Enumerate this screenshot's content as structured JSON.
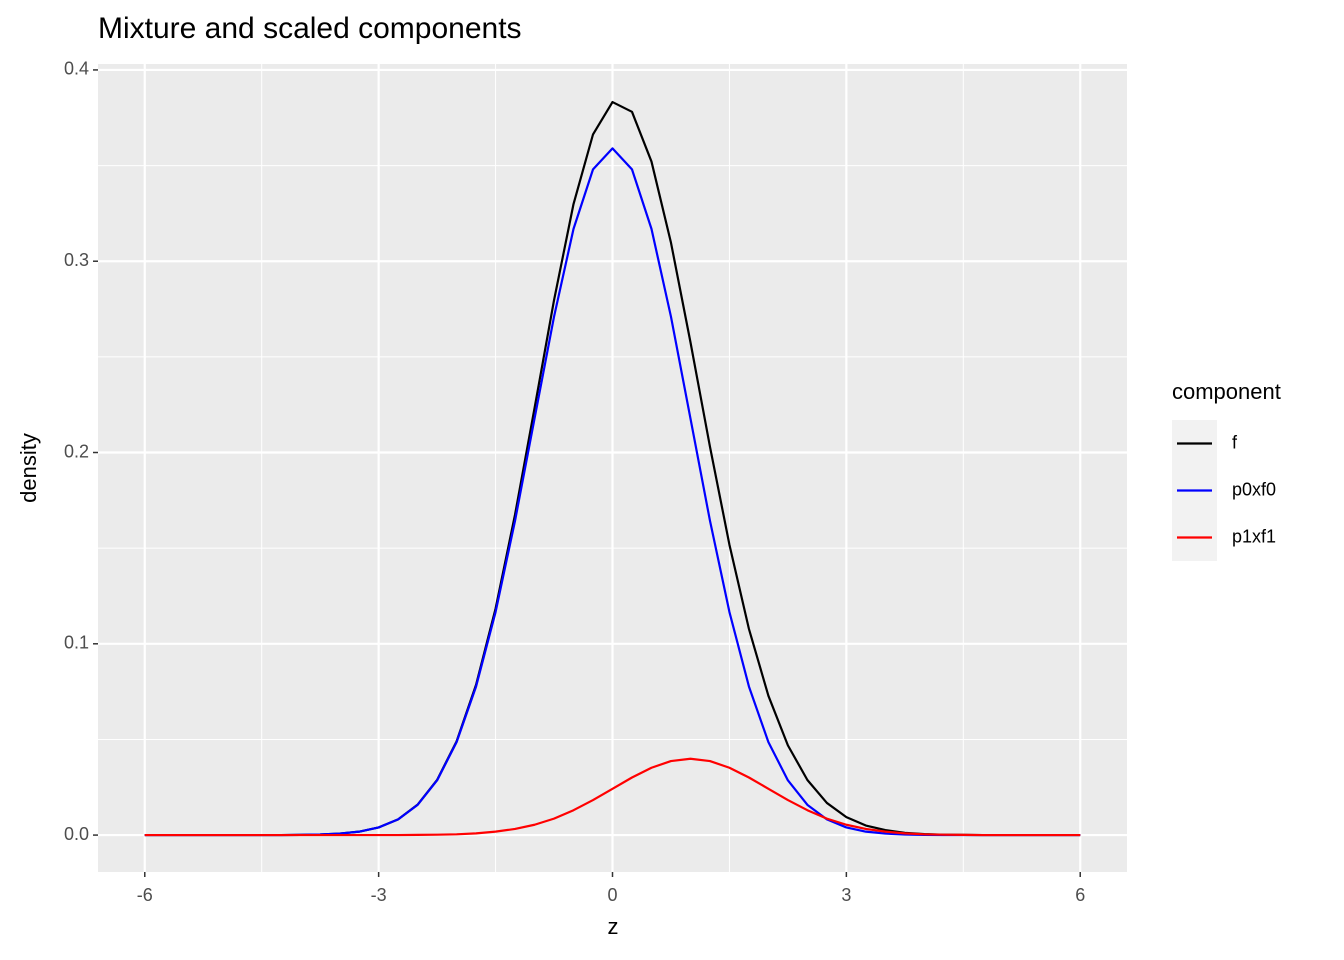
{
  "chart_data": {
    "type": "line",
    "title": "Mixture and scaled components",
    "x_label": "z",
    "y_label": "density",
    "legend_title": "component",
    "x": [
      -6,
      -5.75,
      -5.5,
      -5.25,
      -5,
      -4.75,
      -4.5,
      -4.25,
      -4,
      -3.75,
      -3.5,
      -3.25,
      -3,
      -2.75,
      -2.5,
      -2.25,
      -2,
      -1.75,
      -1.5,
      -1.25,
      -1,
      -0.75,
      -0.5,
      -0.25,
      0,
      0.25,
      0.5,
      0.75,
      1,
      1.25,
      1.5,
      1.75,
      2,
      2.25,
      2.5,
      2.75,
      3,
      3.25,
      3.5,
      3.75,
      4,
      4.25,
      4.5,
      4.75,
      5,
      5.25,
      5.5,
      5.75,
      6
    ],
    "series": [
      {
        "name": "f",
        "color": "#000000",
        "values": [
          0,
          0,
          0,
          0,
          0,
          0,
          0,
          0,
          0.0001,
          0.0003,
          0.0008,
          0.0018,
          0.004,
          0.0082,
          0.0159,
          0.0288,
          0.049,
          0.0786,
          0.1184,
          0.1676,
          0.2232,
          0.2796,
          0.3299,
          0.3663,
          0.3832,
          0.3781,
          0.3521,
          0.3097,
          0.2577,
          0.2031,
          0.1518,
          0.1078,
          0.0728,
          0.0469,
          0.0288,
          0.0168,
          0.0094,
          0.005,
          0.0026,
          0.0012,
          0.0005,
          0.0002,
          0.0001,
          0,
          0,
          0,
          0,
          0,
          0
        ]
      },
      {
        "name": "p0xf0",
        "color": "#0000ff",
        "values": [
          0,
          0,
          0,
          0,
          0,
          0,
          0,
          0,
          0.0001,
          0.0003,
          0.0008,
          0.0018,
          0.004,
          0.0082,
          0.0158,
          0.0286,
          0.0486,
          0.0777,
          0.1166,
          0.1644,
          0.2178,
          0.271,
          0.3169,
          0.348,
          0.359,
          0.348,
          0.3169,
          0.271,
          0.2178,
          0.1644,
          0.1166,
          0.0777,
          0.0486,
          0.0286,
          0.0158,
          0.0082,
          0.004,
          0.0018,
          0.0008,
          0.0003,
          0.0001,
          0,
          0,
          0,
          0,
          0,
          0,
          0,
          0
        ]
      },
      {
        "name": "p1xf1",
        "color": "#ff0000",
        "values": [
          0,
          0,
          0,
          0,
          0,
          0,
          0,
          0,
          0,
          0,
          0,
          0,
          0,
          0,
          0.0001,
          0.0002,
          0.0004,
          0.0009,
          0.0018,
          0.0032,
          0.0054,
          0.0086,
          0.013,
          0.0183,
          0.0242,
          0.0301,
          0.0352,
          0.0387,
          0.0399,
          0.0387,
          0.0352,
          0.0301,
          0.0242,
          0.0183,
          0.013,
          0.0086,
          0.0054,
          0.0032,
          0.0018,
          0.0009,
          0.0004,
          0.0002,
          0.0001,
          0,
          0,
          0,
          0,
          0,
          0
        ]
      }
    ],
    "xlim": [
      -6.6,
      6.6
    ],
    "xticks": [
      -6,
      -3,
      0,
      3,
      6
    ],
    "ylim": [
      -0.0193,
      0.4031
    ],
    "yticks": [
      {
        "value": 0,
        "label": "0.0"
      },
      0.1,
      0.2,
      0.3,
      0.4
    ],
    "grid": true,
    "legend": "right"
  }
}
